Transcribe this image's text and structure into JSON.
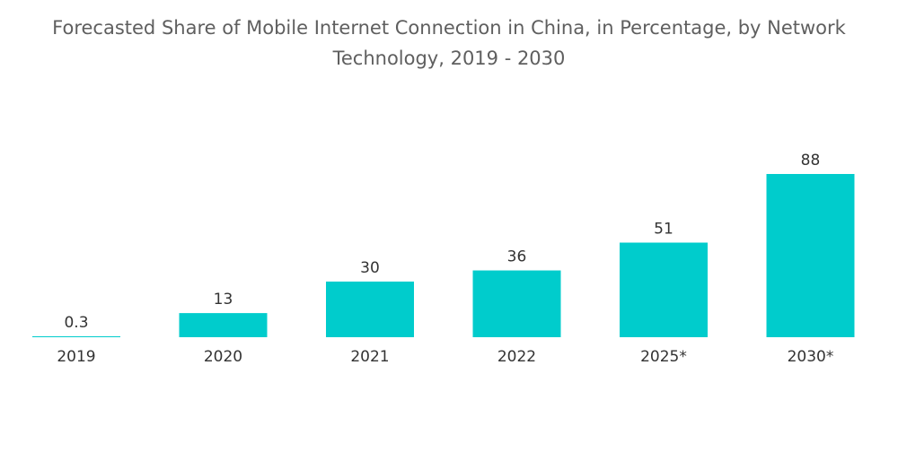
{
  "chart_data": {
    "type": "bar",
    "title_lines": [
      "Forecasted Share of Mobile Internet Connection in China, in Percentage, by Network",
      "Technology, 2019 - 2030"
    ],
    "categories": [
      "2019",
      "2020",
      "2021",
      "2022",
      "2025*",
      "2030*"
    ],
    "values": [
      0.3,
      13,
      30,
      36,
      51,
      88
    ],
    "data_labels": [
      "0.3",
      "13",
      "30",
      "36",
      "51",
      "88"
    ],
    "xlabel": "",
    "ylabel": "",
    "ylim": [
      0,
      88
    ],
    "grid": false,
    "legend": "none",
    "bar_color": "#00cccc"
  }
}
